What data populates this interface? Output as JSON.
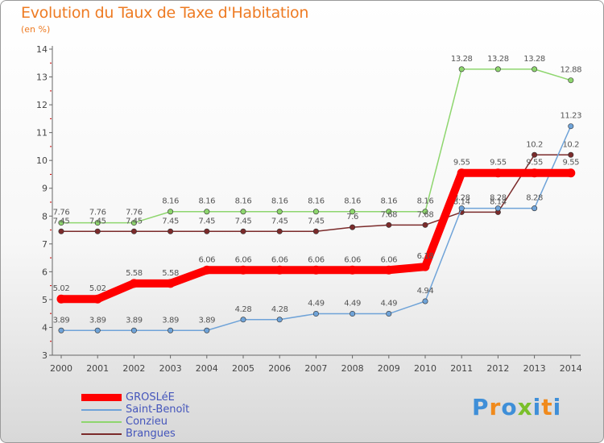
{
  "title": "Evolution du Taux de Taxe d'Habitation",
  "unit_label": "(en %)",
  "logo": {
    "text": "Proxiti",
    "colors": [
      "#3f8fd8",
      "#f08a1c",
      "#3f8fd8",
      "#7abf2a",
      "#3f8fd8",
      "#f08a1c",
      "#3f8fd8"
    ]
  },
  "chart_data": {
    "type": "line",
    "title": "Evolution du Taux de Taxe d'Habitation",
    "ylabel": "(en %)",
    "xlabel": "",
    "x": [
      "2000",
      "2001",
      "2002",
      "2003",
      "2004",
      "2005",
      "2006",
      "2007",
      "2008",
      "2009",
      "2010",
      "2011",
      "2012",
      "2013",
      "2014"
    ],
    "ylim": [
      3,
      14
    ],
    "yticks": [
      "3",
      "4",
      "5",
      "6",
      "7",
      "8",
      "9",
      "10",
      "11",
      "12",
      "13",
      "14"
    ],
    "grid": false,
    "legend_position": "bottom-left",
    "series": [
      {
        "name": "Conzieu",
        "color": "#8ed66e",
        "values": [
          7.76,
          7.76,
          7.76,
          8.16,
          8.16,
          8.16,
          8.16,
          8.16,
          8.16,
          8.16,
          8.16,
          13.28,
          13.28,
          13.28,
          12.88
        ],
        "labels": [
          "7.76",
          "7.76",
          "7.76",
          "8.16",
          "8.16",
          "8.16",
          "8.16",
          "8.16",
          "8.16",
          "8.16",
          "8.16",
          "13.28",
          "13.28",
          "13.28",
          "12.88"
        ]
      },
      {
        "name": "Brangues",
        "color": "#7b2b2b",
        "values": [
          7.45,
          7.45,
          7.45,
          7.45,
          7.45,
          7.45,
          7.45,
          7.45,
          7.6,
          7.68,
          7.68,
          8.14,
          8.14,
          10.2,
          10.2
        ],
        "labels": [
          "7.45",
          "7.45",
          "7.45",
          "7.45",
          "7.45",
          "7.45",
          "7.45",
          "7.45",
          "7.6",
          "7.68",
          "7.68",
          "8.14",
          "8.14",
          "10.2",
          "10.2"
        ]
      },
      {
        "name": "Saint-Benoît",
        "color": "#6fa3d8",
        "values": [
          3.89,
          3.89,
          3.89,
          3.89,
          3.89,
          4.28,
          4.28,
          4.49,
          4.49,
          4.49,
          4.94,
          8.28,
          8.28,
          8.28,
          11.23
        ],
        "labels": [
          "3.89",
          "3.89",
          "3.89",
          "3.89",
          "3.89",
          "4.28",
          "4.28",
          "4.49",
          "4.49",
          "4.49",
          "4.94",
          "8.28",
          "8.28",
          "8.28",
          "11.23"
        ]
      },
      {
        "name": "GROSLéE",
        "color": "#ff0000",
        "values": [
          5.02,
          5.02,
          5.58,
          5.58,
          6.06,
          6.06,
          6.06,
          6.06,
          6.06,
          6.06,
          6.18,
          9.55,
          9.55,
          9.55,
          9.55
        ],
        "labels": [
          "5.02",
          "5.02",
          "5.58",
          "5.58",
          "6.06",
          "6.06",
          "6.06",
          "6.06",
          "6.06",
          "6.06",
          "6.18",
          "9.55",
          "9.55",
          "9.55",
          "9.55"
        ]
      }
    ]
  },
  "legend": [
    {
      "label": "GROSLéE",
      "color": "#ff0000"
    },
    {
      "label": "Saint-Benoît",
      "color": "#6fa3d8"
    },
    {
      "label": "Conzieu",
      "color": "#8ed66e"
    },
    {
      "label": "Brangues",
      "color": "#7b2b2b"
    }
  ]
}
